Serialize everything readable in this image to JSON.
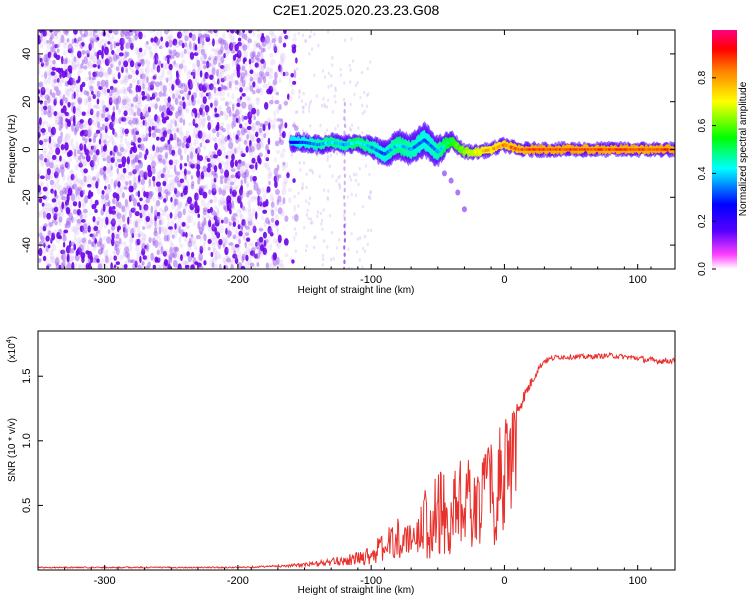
{
  "title": "C2E1.2025.020.23.23.G08",
  "colors": {
    "line": "#e8302c",
    "colormap": [
      "#ff00ff",
      "#5500ff",
      "#0000ff",
      "#00ffff",
      "#00ff00",
      "#ffff00",
      "#ff8000",
      "#ff0000"
    ],
    "background": "#ffffff"
  },
  "chart_data": [
    {
      "type": "heatmap",
      "title": "",
      "xlabel": "Height of straight line (km)",
      "ylabel": "Frequency (Hz)",
      "xlim": [
        -350,
        128
      ],
      "ylim": [
        -50,
        50
      ],
      "xticks": [
        -300,
        -200,
        -100,
        0,
        100
      ],
      "yticks": [
        -40,
        -20,
        0,
        20,
        40
      ],
      "colorbar": {
        "label": "Normalized spectral amplitude",
        "range": [
          0,
          1
        ],
        "ticks": [
          "0.0",
          "0.2",
          "0.4",
          "0.6",
          "0.8"
        ]
      },
      "noise_region": {
        "x_range": [
          -350,
          -155
        ],
        "freq_range": [
          -50,
          50
        ],
        "amplitude": 0.1
      },
      "sparse_noise_region": {
        "x_range": [
          -160,
          -100
        ],
        "freq_range": [
          -50,
          50
        ],
        "amplitude": 0.05
      },
      "signal_track": {
        "x": [
          -160,
          -150,
          -140,
          -130,
          -120,
          -110,
          -100,
          -90,
          -80,
          -70,
          -60,
          -50,
          -40,
          -30,
          -20,
          -10,
          0,
          10,
          20,
          40,
          60,
          80,
          100,
          128
        ],
        "freq": [
          3,
          3,
          2,
          3,
          2,
          3,
          1,
          -2,
          2,
          0,
          4,
          -1,
          4,
          -1,
          -1,
          0,
          2,
          0,
          0,
          0,
          0,
          0,
          0,
          0
        ],
        "amplitude": [
          0.3,
          0.35,
          0.4,
          0.45,
          0.4,
          0.5,
          0.4,
          0.35,
          0.45,
          0.4,
          0.35,
          0.4,
          0.6,
          0.7,
          0.8,
          0.85,
          0.9,
          0.95,
          1.0,
          1.0,
          1.0,
          1.0,
          1.0,
          1.0
        ],
        "width_hz": [
          3,
          3,
          3,
          3,
          3,
          3,
          4,
          5,
          6,
          6,
          7,
          6,
          3,
          2,
          2,
          2,
          2,
          2,
          2,
          2,
          2,
          2,
          2,
          2
        ]
      },
      "secondary_track": {
        "x": [
          -45,
          -40,
          -35,
          -30
        ],
        "freq": [
          -10,
          -13,
          -18,
          -25
        ],
        "amplitude": 0.35
      },
      "vertical_streak": {
        "x": -120,
        "freq_range": [
          -50,
          20
        ]
      }
    },
    {
      "type": "line",
      "title": "",
      "xlabel": "Height of straight line (km)",
      "ylabel": "SNR (10 * v/v)",
      "y_multiplier": "(x10",
      "y_multiplier_exp": "4",
      "y_multiplier_close": ")",
      "xlim": [
        -350,
        128
      ],
      "ylim": [
        0,
        1.85
      ],
      "xticks": [
        -300,
        -200,
        -100,
        0,
        100
      ],
      "yticks": [
        0.5,
        1.0,
        1.5
      ],
      "ytick_labels": [
        "0.5",
        "1.0",
        "1.5"
      ],
      "series": [
        {
          "x": [
            -350,
            -300,
            -250,
            -200,
            -170,
            -150,
            -130,
            -110,
            -100,
            -90,
            -80,
            -70,
            -60,
            -50,
            -40,
            -30,
            -20,
            -10,
            0,
            5,
            10,
            15,
            20,
            25,
            30,
            40,
            60,
            80,
            100,
            110,
            128
          ],
          "y": [
            0.02,
            0.02,
            0.02,
            0.02,
            0.03,
            0.04,
            0.06,
            0.09,
            0.12,
            0.18,
            0.25,
            0.3,
            0.4,
            0.5,
            0.55,
            0.65,
            0.75,
            0.9,
            1.05,
            1.15,
            1.25,
            1.35,
            1.45,
            1.55,
            1.62,
            1.65,
            1.65,
            1.66,
            1.64,
            1.62,
            1.62
          ],
          "noise": [
            0.005,
            0.005,
            0.005,
            0.005,
            0.008,
            0.015,
            0.03,
            0.05,
            0.08,
            0.12,
            0.15,
            0.18,
            0.22,
            0.25,
            0.25,
            0.25,
            0.22,
            0.15,
            0.12,
            0.1,
            0.08,
            0.05,
            0.04,
            0.03,
            0.02,
            0.02,
            0.02,
            0.02,
            0.02,
            0.03,
            0.02
          ]
        }
      ]
    }
  ]
}
